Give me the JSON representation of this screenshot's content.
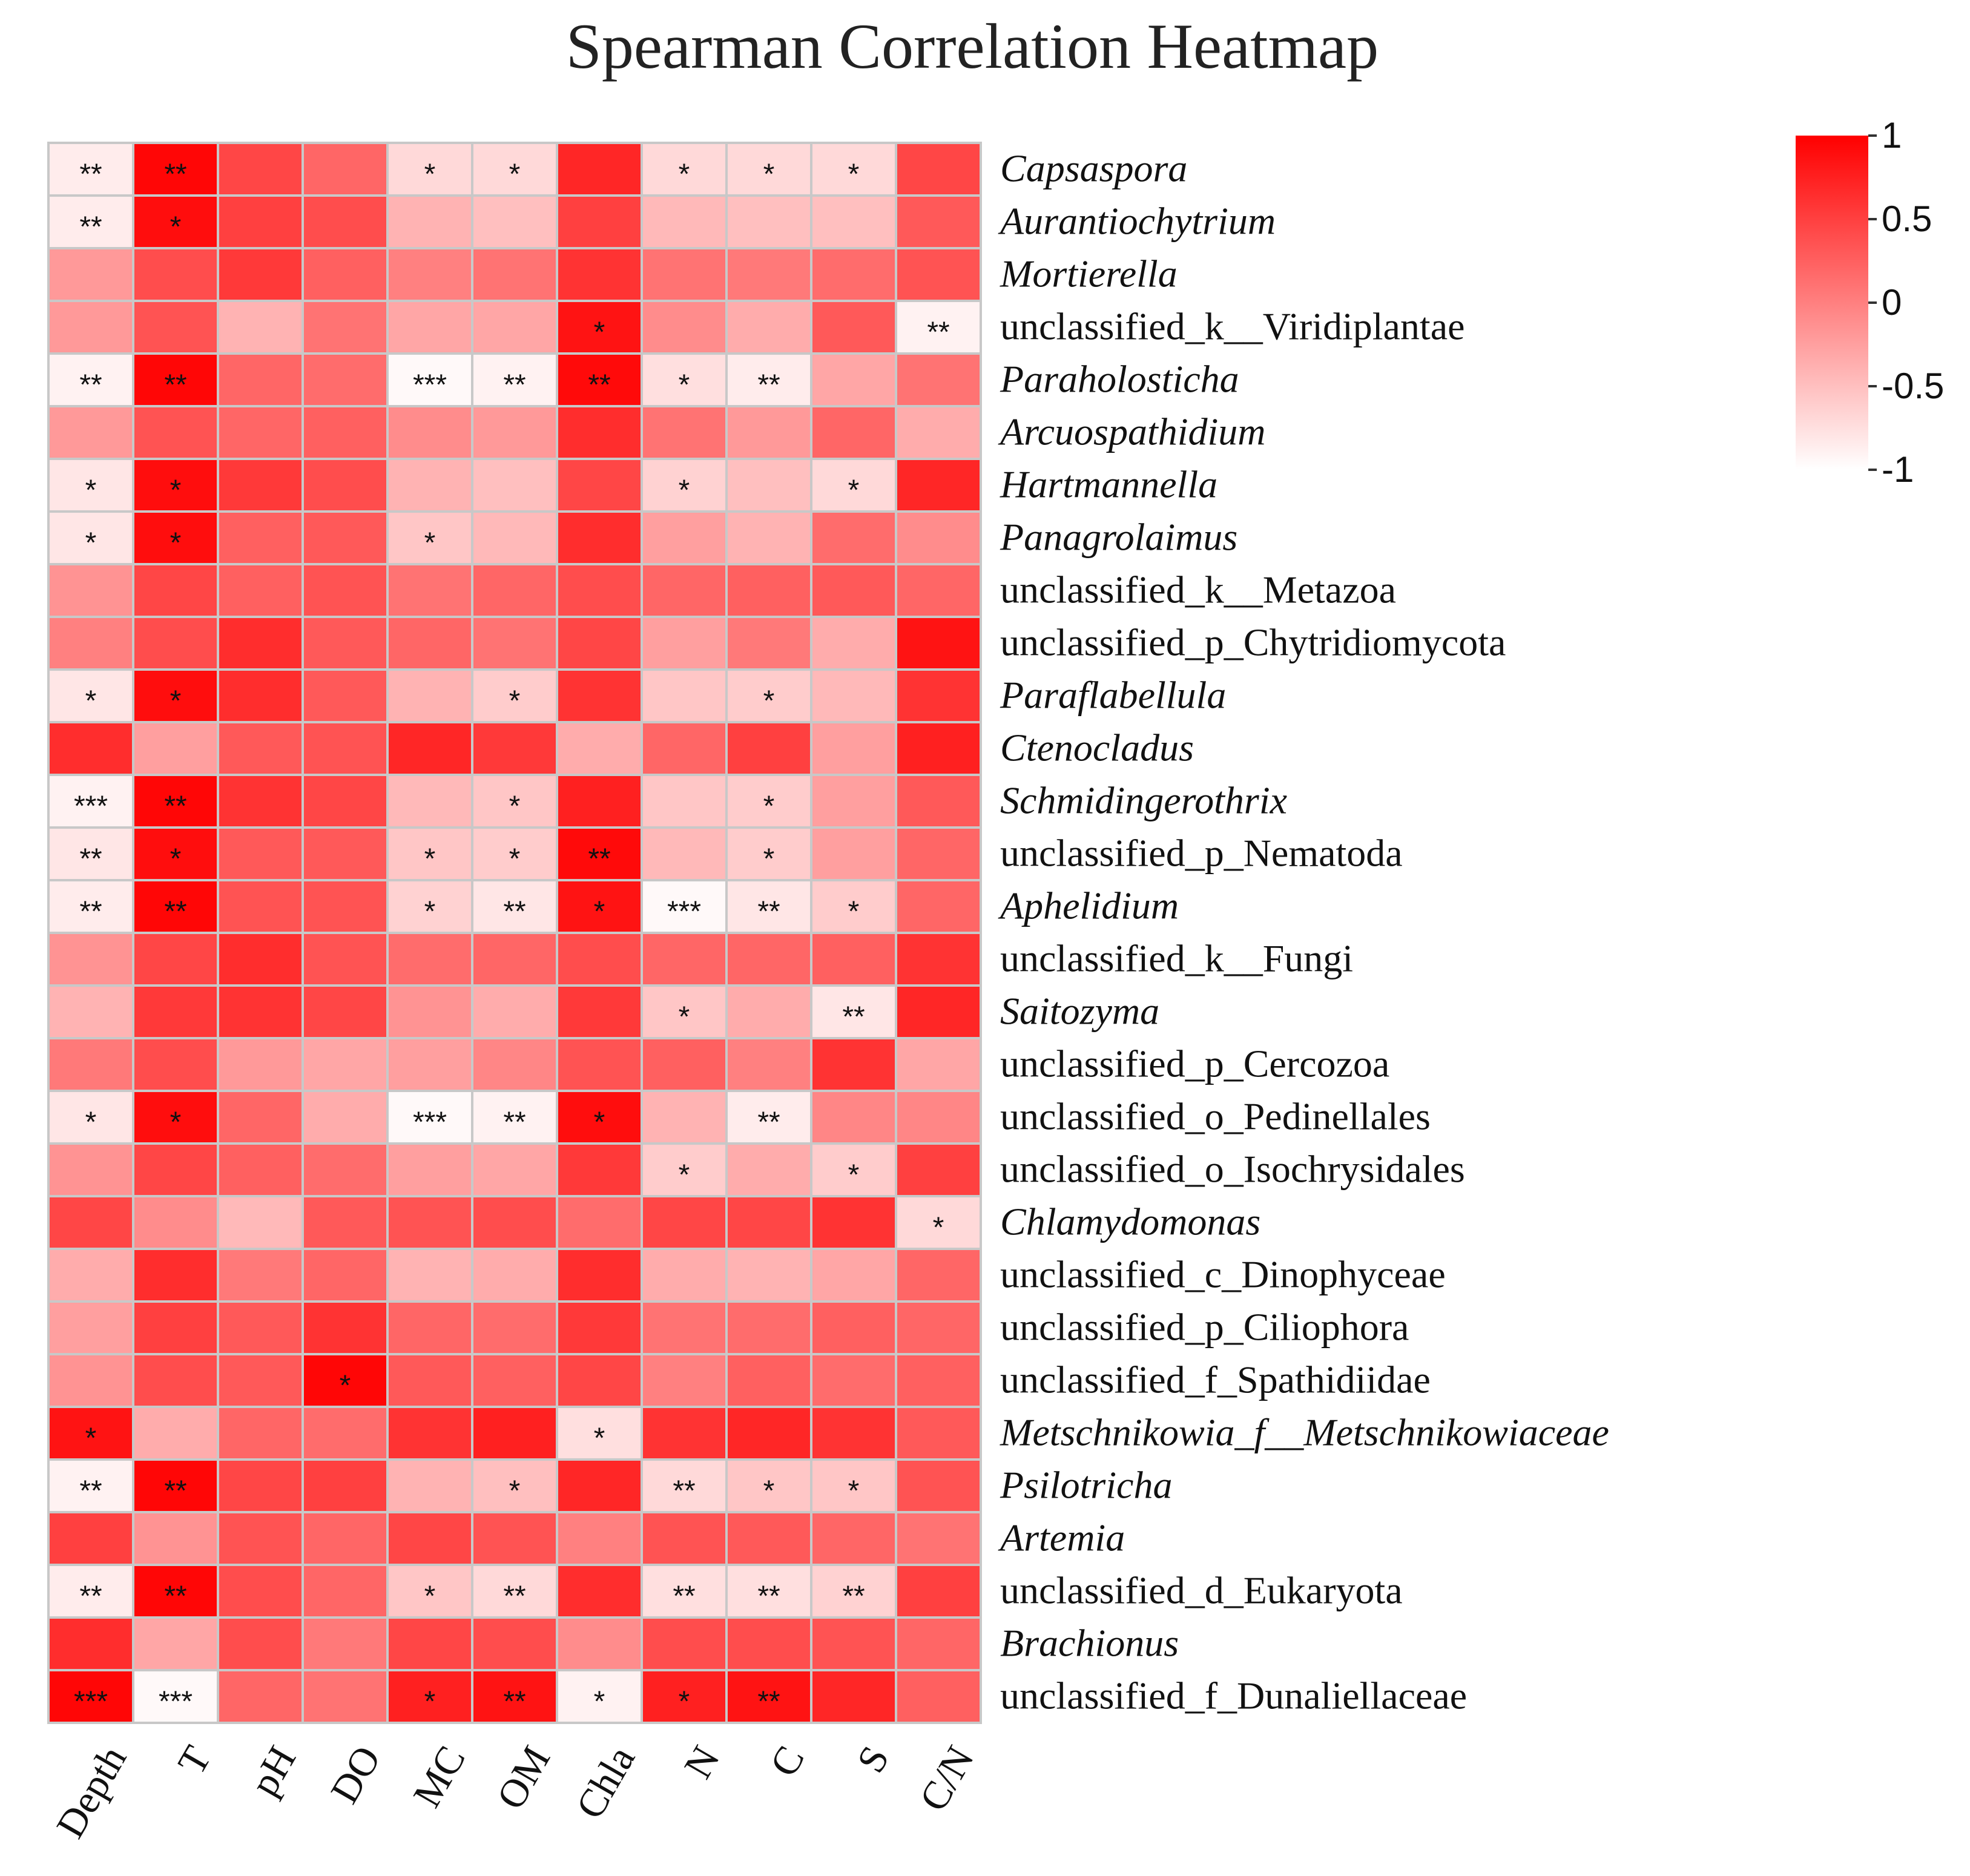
{
  "chart_data": {
    "type": "heatmap",
    "title": "Spearman Correlation Heatmap",
    "columns": [
      "Depth",
      "T",
      "pH",
      "DO",
      "MC",
      "OM",
      "Chla",
      "N",
      "C",
      "S",
      "C/N"
    ],
    "rows": [
      {
        "name": "Capsaspora",
        "italic": true
      },
      {
        "name": "Aurantiochytrium",
        "italic": true
      },
      {
        "name": "Mortierella",
        "italic": true
      },
      {
        "name": "unclassified_k__Viridiplantae",
        "italic": false
      },
      {
        "name": "Paraholosticha",
        "italic": true
      },
      {
        "name": "Arcuospathidium",
        "italic": true
      },
      {
        "name": "Hartmannella",
        "italic": true
      },
      {
        "name": "Panagrolaimus",
        "italic": true
      },
      {
        "name": "unclassified_k__Metazoa",
        "italic": false
      },
      {
        "name": "unclassified_p_Chytridiomycota",
        "italic": false
      },
      {
        "name": "Paraflabellula",
        "italic": true
      },
      {
        "name": "Ctenocladus",
        "italic": true
      },
      {
        "name": "Schmidingerothrix",
        "italic": true
      },
      {
        "name": "unclassified_p_Nematoda",
        "italic": false
      },
      {
        "name": "Aphelidium",
        "italic": true
      },
      {
        "name": "unclassified_k__Fungi",
        "italic": false
      },
      {
        "name": "Saitozyma",
        "italic": true
      },
      {
        "name": "unclassified_p_Cercozoa",
        "italic": false
      },
      {
        "name": "unclassified_o_Pedinellales",
        "italic": false
      },
      {
        "name": "unclassified_o_Isochrysidales",
        "italic": false
      },
      {
        "name": "Chlamydomonas",
        "italic": true
      },
      {
        "name": "unclassified_c_Dinophyceae",
        "italic": false
      },
      {
        "name": "unclassified_p_Ciliophora",
        "italic": false
      },
      {
        "name": "unclassified_f_Spathidiidae",
        "italic": false
      },
      {
        "name": "Metschnikowia_f__Metschnikowiaceae",
        "italic": true
      },
      {
        "name": "Psilotricha",
        "italic": true
      },
      {
        "name": "Artemia",
        "italic": true
      },
      {
        "name": "unclassified_d_Eukaryota",
        "italic": false
      },
      {
        "name": "Brachionus",
        "italic": true
      },
      {
        "name": "unclassified_f_Dunaliellaceae",
        "italic": false
      }
    ],
    "values": [
      [
        -0.85,
        0.95,
        0.45,
        0.2,
        -0.7,
        -0.7,
        0.7,
        -0.7,
        -0.7,
        -0.7,
        0.45
      ],
      [
        -0.85,
        0.9,
        0.5,
        0.4,
        -0.4,
        -0.5,
        0.5,
        -0.45,
        -0.5,
        -0.5,
        0.3
      ],
      [
        -0.2,
        0.4,
        0.55,
        0.25,
        0.0,
        0.1,
        0.6,
        0.1,
        0.05,
        0.15,
        0.35
      ],
      [
        -0.2,
        0.35,
        -0.4,
        0.1,
        -0.3,
        -0.3,
        0.85,
        -0.1,
        -0.35,
        0.3,
        -0.9
      ],
      [
        -0.9,
        0.95,
        0.2,
        0.15,
        -0.95,
        -0.9,
        0.92,
        -0.75,
        -0.85,
        -0.3,
        0.1
      ],
      [
        -0.2,
        0.35,
        0.2,
        0.25,
        -0.1,
        -0.2,
        0.65,
        0.1,
        -0.2,
        0.2,
        -0.35
      ],
      [
        -0.8,
        0.9,
        0.55,
        0.4,
        -0.4,
        -0.5,
        0.45,
        -0.65,
        -0.5,
        -0.7,
        0.7
      ],
      [
        -0.8,
        0.9,
        0.25,
        0.3,
        -0.55,
        -0.45,
        0.65,
        -0.25,
        -0.4,
        0.15,
        -0.1
      ],
      [
        -0.15,
        0.45,
        0.25,
        0.35,
        0.1,
        0.2,
        0.4,
        0.2,
        0.25,
        0.3,
        0.2
      ],
      [
        0.0,
        0.4,
        0.65,
        0.3,
        0.2,
        0.1,
        0.45,
        -0.25,
        0.05,
        -0.35,
        0.85
      ],
      [
        -0.8,
        0.9,
        0.65,
        0.3,
        -0.4,
        -0.6,
        0.6,
        -0.55,
        -0.6,
        -0.45,
        0.6
      ],
      [
        0.65,
        -0.25,
        0.3,
        0.35,
        0.7,
        0.55,
        -0.35,
        0.2,
        0.5,
        -0.25,
        0.75
      ],
      [
        -0.9,
        0.95,
        0.6,
        0.45,
        -0.45,
        -0.55,
        0.75,
        -0.55,
        -0.6,
        -0.25,
        0.3
      ],
      [
        -0.8,
        0.9,
        0.3,
        0.3,
        -0.55,
        -0.6,
        0.92,
        -0.45,
        -0.6,
        -0.25,
        0.2
      ],
      [
        -0.85,
        0.95,
        0.35,
        0.35,
        -0.65,
        -0.8,
        0.85,
        -0.95,
        -0.8,
        -0.6,
        0.2
      ],
      [
        -0.15,
        0.45,
        0.65,
        0.35,
        0.15,
        0.2,
        0.4,
        0.2,
        0.2,
        0.25,
        0.6
      ],
      [
        -0.4,
        0.55,
        0.6,
        0.45,
        -0.15,
        -0.35,
        0.55,
        -0.55,
        -0.35,
        -0.8,
        0.7
      ],
      [
        0.05,
        0.4,
        -0.2,
        -0.3,
        -0.25,
        -0.05,
        0.35,
        0.25,
        0.0,
        0.6,
        -0.3
      ],
      [
        -0.8,
        0.9,
        0.2,
        -0.35,
        -0.95,
        -0.9,
        0.9,
        -0.4,
        -0.85,
        -0.05,
        -0.05
      ],
      [
        -0.15,
        0.45,
        0.25,
        0.15,
        -0.25,
        -0.3,
        0.55,
        -0.6,
        -0.35,
        -0.6,
        0.5
      ],
      [
        0.45,
        -0.1,
        -0.45,
        0.3,
        0.35,
        0.4,
        0.15,
        0.45,
        0.45,
        0.6,
        -0.7
      ],
      [
        -0.35,
        0.65,
        0.05,
        0.2,
        -0.4,
        -0.35,
        0.65,
        -0.35,
        -0.4,
        -0.3,
        0.2
      ],
      [
        -0.25,
        0.5,
        0.3,
        0.6,
        0.2,
        0.15,
        0.55,
        0.1,
        0.15,
        0.25,
        0.2
      ],
      [
        -0.15,
        0.4,
        0.3,
        0.95,
        0.3,
        0.25,
        0.45,
        0.0,
        0.25,
        0.15,
        0.25
      ],
      [
        0.85,
        -0.35,
        0.2,
        0.15,
        0.6,
        0.75,
        -0.75,
        0.6,
        0.7,
        0.6,
        0.3
      ],
      [
        -0.9,
        0.95,
        0.45,
        0.5,
        -0.4,
        -0.5,
        0.7,
        -0.7,
        -0.55,
        -0.55,
        0.35
      ],
      [
        0.5,
        -0.15,
        0.35,
        0.2,
        0.45,
        0.35,
        0.0,
        0.35,
        0.3,
        0.2,
        0.1
      ],
      [
        -0.85,
        0.95,
        0.4,
        0.2,
        -0.55,
        -0.7,
        0.65,
        -0.75,
        -0.75,
        -0.65,
        0.5
      ],
      [
        0.65,
        -0.3,
        0.4,
        0.05,
        0.45,
        0.4,
        -0.1,
        0.4,
        0.4,
        0.35,
        0.2
      ],
      [
        0.95,
        -0.95,
        0.2,
        0.1,
        0.75,
        0.85,
        -0.9,
        0.75,
        0.85,
        0.7,
        0.25
      ]
    ],
    "significance": [
      [
        "**",
        "**",
        "",
        "",
        "*",
        "*",
        "",
        "*",
        "*",
        "*",
        ""
      ],
      [
        "**",
        "*",
        "",
        "",
        "",
        "",
        "",
        "",
        "",
        "",
        ""
      ],
      [
        "",
        "",
        "",
        "",
        "",
        "",
        "",
        "",
        "",
        "",
        ""
      ],
      [
        "",
        "",
        "",
        "",
        "",
        "",
        "*",
        "",
        "",
        "",
        "**"
      ],
      [
        "**",
        "**",
        "",
        "",
        "***",
        "**",
        "**",
        "*",
        "**",
        "",
        ""
      ],
      [
        "",
        "",
        "",
        "",
        "",
        "",
        "",
        "",
        "",
        "",
        ""
      ],
      [
        "*",
        "*",
        "",
        "",
        "",
        "",
        "",
        "*",
        "",
        "*",
        ""
      ],
      [
        "*",
        "*",
        "",
        "",
        "*",
        "",
        "",
        "",
        "",
        "",
        ""
      ],
      [
        "",
        "",
        "",
        "",
        "",
        "",
        "",
        "",
        "",
        "",
        ""
      ],
      [
        "",
        "",
        "",
        "",
        "",
        "",
        "",
        "",
        "",
        "",
        ""
      ],
      [
        "*",
        "*",
        "",
        "",
        "",
        "*",
        "",
        "",
        "*",
        "",
        ""
      ],
      [
        "",
        "",
        "",
        "",
        "",
        "",
        "",
        "",
        "",
        "",
        ""
      ],
      [
        "***",
        "**",
        "",
        "",
        "",
        "*",
        "",
        "",
        "*",
        "",
        ""
      ],
      [
        "**",
        "*",
        "",
        "",
        "*",
        "*",
        "**",
        "",
        "*",
        "",
        ""
      ],
      [
        "**",
        "**",
        "",
        "",
        "*",
        "**",
        "*",
        "***",
        "**",
        "*",
        ""
      ],
      [
        "",
        "",
        "",
        "",
        "",
        "",
        "",
        "",
        "",
        "",
        ""
      ],
      [
        "",
        "",
        "",
        "",
        "",
        "",
        "",
        "*",
        "",
        "**",
        ""
      ],
      [
        "",
        "",
        "",
        "",
        "",
        "",
        "",
        "",
        "",
        "",
        ""
      ],
      [
        "*",
        "*",
        "",
        "",
        "***",
        "**",
        "*",
        "",
        "**",
        "",
        ""
      ],
      [
        "",
        "",
        "",
        "",
        "",
        "",
        "",
        "*",
        "",
        "*",
        ""
      ],
      [
        "",
        "",
        "",
        "",
        "",
        "",
        "",
        "",
        "",
        "",
        "*"
      ],
      [
        "",
        "",
        "",
        "",
        "",
        "",
        "",
        "",
        "",
        "",
        ""
      ],
      [
        "",
        "",
        "",
        "",
        "",
        "",
        "",
        "",
        "",
        "",
        ""
      ],
      [
        "",
        "",
        "",
        "*",
        "",
        "",
        "",
        "",
        "",
        "",
        ""
      ],
      [
        "*",
        "",
        "",
        "",
        "",
        "",
        "*",
        "",
        "",
        "",
        ""
      ],
      [
        "**",
        "**",
        "",
        "",
        "",
        "*",
        "",
        "**",
        "*",
        "*",
        ""
      ],
      [
        "",
        "",
        "",
        "",
        "",
        "",
        "",
        "",
        "",
        "",
        ""
      ],
      [
        "**",
        "**",
        "",
        "",
        "*",
        "**",
        "",
        "**",
        "**",
        "**",
        ""
      ],
      [
        "",
        "",
        "",
        "",
        "",
        "",
        "",
        "",
        "",
        "",
        ""
      ],
      [
        "***",
        "***",
        "",
        "",
        "*",
        "**",
        "*",
        "*",
        "**",
        "",
        ""
      ]
    ],
    "colorscale": {
      "min": -1,
      "max": 1,
      "low_color": "#ffffff",
      "high_color": "#ff0000"
    },
    "colorbar_ticks": [
      "1",
      "0.5",
      "0",
      "-0.5",
      "-1"
    ],
    "colorbar_tick_values": [
      1,
      0.5,
      0,
      -0.5,
      -1
    ]
  }
}
